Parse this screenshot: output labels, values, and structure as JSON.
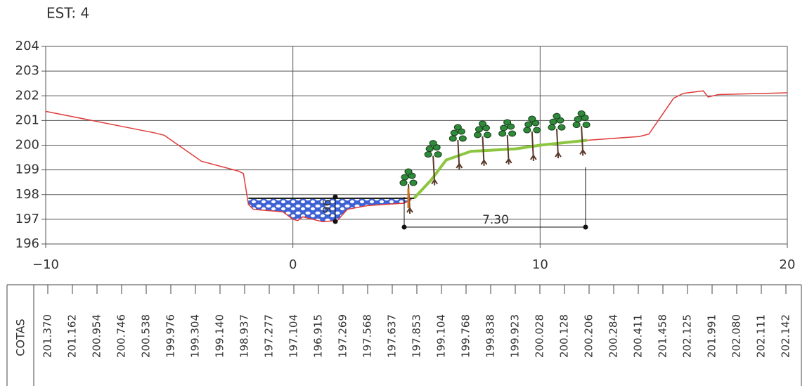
{
  "chart_data": {
    "type": "line",
    "title": "EST: 4",
    "xlim": [
      -10,
      20
    ],
    "ylim": [
      196,
      204
    ],
    "xticks": [
      {
        "value": -10,
        "label": "−10"
      },
      0,
      10,
      20
    ],
    "yticks": [
      196,
      197,
      198,
      199,
      200,
      201,
      202,
      203,
      204
    ],
    "grid": true,
    "series": [
      {
        "color": "#e03c3c",
        "x": [
          -10,
          -5.6,
          -5.2,
          -3.7,
          -2.2,
          -2,
          -1.8,
          -1.6,
          -0.4,
          0,
          0.2,
          0.4,
          0.8,
          1.2,
          1.8,
          2.2,
          3,
          4.5,
          4.8
        ],
        "values": [
          201.37,
          200.5,
          200.4,
          199.35,
          198.95,
          198.85,
          197.6,
          197.4,
          197.3,
          197.0,
          196.95,
          197.1,
          197.0,
          196.9,
          196.95,
          197.4,
          197.55,
          197.65,
          197.8
        ]
      },
      {
        "color": "#8cc63f",
        "x": [
          4.9,
          5.6,
          6.2,
          7.2,
          9,
          10,
          11.9
        ],
        "values": [
          197.85,
          198.6,
          199.4,
          199.75,
          199.85,
          200.0,
          200.2
        ]
      },
      {
        "color": "#e03c3c",
        "x": [
          11.9,
          14,
          14.4,
          15.4,
          15.8,
          16.6,
          16.8,
          17.2,
          20
        ],
        "values": [
          200.2,
          200.35,
          200.45,
          201.9,
          202.1,
          202.2,
          201.95,
          202.05,
          202.12
        ]
      }
    ],
    "annotations": [
      ".96",
      "7.30"
    ],
    "cotas": {
      "label": "COTAS",
      "values": [
        "201.370",
        "201.162",
        "200.954",
        "200.746",
        "200.538",
        "199.976",
        "199.304",
        "199.140",
        "198.937",
        "197.277",
        "197.104",
        "196.915",
        "197.269",
        "197.568",
        "197.637",
        "197.853",
        "199.104",
        "199.768",
        "199.838",
        "199.923",
        "200.028",
        "200.128",
        "200.206",
        "200.284",
        "200.411",
        "201.458",
        "202.125",
        "201.991",
        "202.080",
        "202.111",
        "202.142"
      ]
    }
  }
}
